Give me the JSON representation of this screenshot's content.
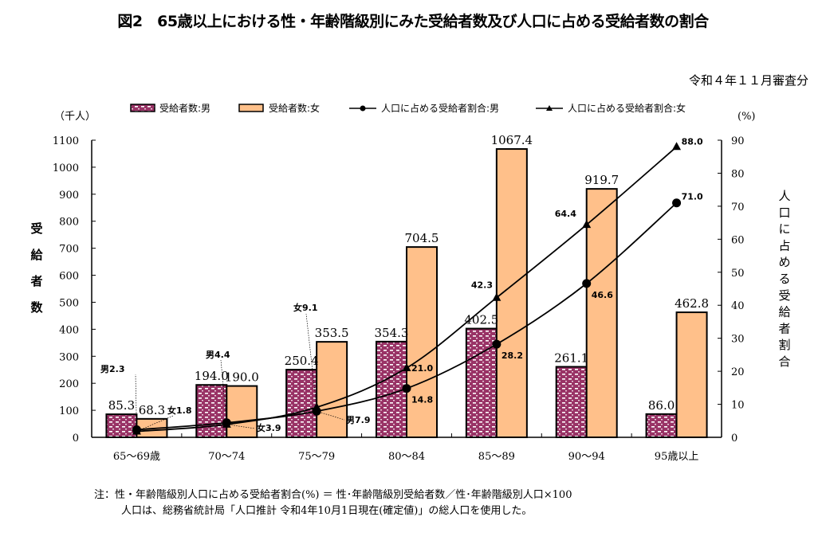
{
  "title": "図2　65歳以上における性・年齢階級別にみた受給者数及び人口に占める受給者数の割合",
  "subtitle": "令和４年１１月審査分",
  "notes": [
    "注：性・年齢階級別人口に占める受給者割合(%) ＝ 性･年齢階級別受給者数／性･年齢階級別人口×100",
    "人口は、総務省統計局「人口推計 令和4年10月1日現在(確定値)」の総人口を使用した。"
  ],
  "chart_data": {
    "type": "bar+line",
    "title": "65歳以上における性・年齢階級別にみた受給者数及び人口に占める受給者数の割合",
    "categories": [
      "65～69歳",
      "70～74",
      "75～79",
      "80～84",
      "85～89",
      "90～94",
      "95歳以上"
    ],
    "left_axis": {
      "label": "受給者数",
      "unit": "（千人）",
      "ylim": [
        0,
        1100
      ],
      "ticks": [
        0,
        100,
        200,
        300,
        400,
        500,
        600,
        700,
        800,
        900,
        1000,
        1100
      ]
    },
    "right_axis": {
      "label": "人口に占める受給者割合",
      "unit": "(%)",
      "ylim": [
        0,
        90
      ],
      "ticks": [
        0,
        10,
        20,
        30,
        40,
        50,
        60,
        70,
        80,
        90
      ]
    },
    "series": [
      {
        "name": "受給者数:男",
        "type": "bar",
        "axis": "left",
        "color": "#993366",
        "values": [
          85.3,
          194.0,
          250.4,
          354.3,
          402.5,
          261.1,
          86.0
        ]
      },
      {
        "name": "受給者数:女",
        "type": "bar",
        "axis": "left",
        "color": "#FFC08A",
        "values": [
          68.3,
          190.0,
          353.5,
          704.5,
          1067.4,
          919.7,
          462.8
        ]
      },
      {
        "name": "人口に占める受給者割合:男",
        "type": "line",
        "marker": "circle",
        "axis": "right",
        "color": "#000000",
        "values": [
          2.3,
          4.4,
          7.9,
          14.8,
          28.2,
          46.6,
          71.0
        ]
      },
      {
        "name": "人口に占める受給者割合:女",
        "type": "line",
        "marker": "triangle",
        "axis": "right",
        "color": "#000000",
        "values": [
          1.8,
          3.9,
          9.1,
          21.0,
          42.3,
          64.4,
          88.0
        ]
      }
    ],
    "annotations": [
      {
        "series": "男",
        "index": 0,
        "text": "男2.3"
      },
      {
        "series": "女",
        "index": 0,
        "text": "女1.8"
      },
      {
        "series": "男",
        "index": 1,
        "text": "男4.4"
      },
      {
        "series": "女",
        "index": 1,
        "text": "女3.9"
      },
      {
        "series": "男",
        "index": 2,
        "text": "男7.9"
      },
      {
        "series": "女",
        "index": 2,
        "text": "女9.1"
      }
    ],
    "legend": "top",
    "grid": false
  }
}
